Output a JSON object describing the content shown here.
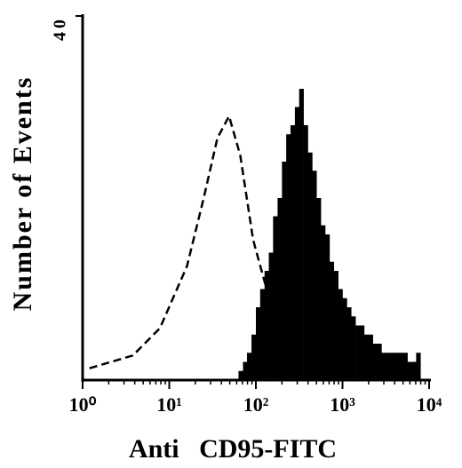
{
  "chart_data": {
    "type": "histogram",
    "xlabel": "Anti   CD95-FITC",
    "ylabel": "Number of Events",
    "xscale": "log",
    "xlim": [
      1,
      10000
    ],
    "xticks": [
      {
        "value": 1,
        "label": "10⁰"
      },
      {
        "value": 10,
        "label": "10¹"
      },
      {
        "value": 100,
        "label": "10²"
      },
      {
        "value": 1000,
        "label": "10³"
      },
      {
        "value": 10000,
        "label": "10⁴"
      }
    ],
    "ylim": [
      0,
      40
    ],
    "yticks": [
      40
    ],
    "color": "#000000",
    "bins": [
      63,
      71,
      79,
      89,
      100,
      112,
      126,
      141,
      158,
      178,
      200,
      224,
      251,
      282,
      316,
      355,
      398,
      447,
      501,
      562,
      631,
      708,
      794,
      891,
      1000,
      1122,
      1259,
      1413,
      1585,
      1778,
      1995,
      2239,
      2512,
      2818,
      3162,
      3548,
      3981,
      4467,
      5012,
      5623,
      6310,
      7079,
      7943
    ],
    "values": [
      1,
      2,
      3,
      5,
      8,
      10,
      12,
      14,
      18,
      20,
      24,
      27,
      28,
      30,
      32,
      28,
      25,
      23,
      20,
      17,
      16,
      13,
      12,
      10,
      9,
      8,
      7,
      6,
      6,
      5,
      5,
      4,
      4,
      3,
      3,
      3,
      3,
      3,
      3,
      2,
      2,
      3
    ],
    "overlay": {
      "style": "dashed",
      "color": "#000000",
      "x": [
        1.2,
        3.8,
        7.8,
        16,
        25,
        36,
        49,
        66,
        93,
        133
      ],
      "values": [
        1.3,
        2.7,
        5.7,
        12.5,
        20,
        26.6,
        29,
        24.7,
        15.4,
        10
      ]
    }
  }
}
